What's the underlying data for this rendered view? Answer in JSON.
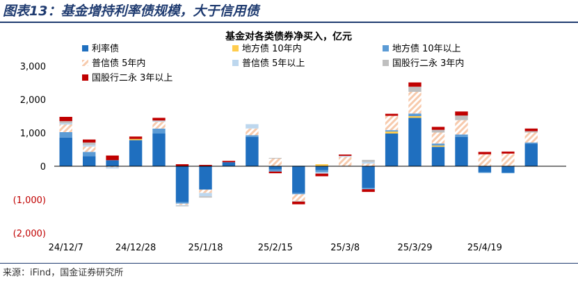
{
  "figure_title": "图表13：基金增持利率债规模，大于信用债",
  "source": "来源：iFind，国金证券研究所",
  "colors": {
    "title": "#1f3b70",
    "negative_tick": "#c00000",
    "rate_bond": "#1f6fbf",
    "local_gov_under10": "#ffcc4d",
    "local_gov_over10": "#5b9bd5",
    "general_credit_under5_stripe": "#f7caac",
    "general_credit_over5": "#bdd7ee",
    "bank_perpetual_under3": "#bfbfbf",
    "bank_perpetual_over3": "#c00000"
  },
  "chart_data": {
    "type": "bar",
    "stacked": true,
    "title": "基金对各类债券净买入，亿元",
    "xlabel": "",
    "ylabel": "",
    "ylim": [
      -2000,
      3000
    ],
    "yticks": [
      3000,
      2000,
      1000,
      0,
      -1000,
      -2000
    ],
    "ytick_labels": [
      "3,000",
      "2,000",
      "1,000",
      "0",
      "(1,000)",
      "(2,000)"
    ],
    "xtick_labels": [
      "24/12/7",
      "24/12/28",
      "25/1/18",
      "25/2/15",
      "25/3/8",
      "25/3/29",
      "25/4/19"
    ],
    "xtick_indices": [
      0,
      3,
      6,
      9,
      12,
      15,
      18
    ],
    "legend_position": "top-left",
    "grid": false,
    "categories": [
      "1",
      "2",
      "3",
      "4",
      "5",
      "6",
      "7",
      "8",
      "9",
      "10",
      "11",
      "12",
      "13",
      "14",
      "15",
      "16",
      "17",
      "18",
      "19",
      "20",
      "21",
      "22"
    ],
    "series": [
      {
        "name": "利率债",
        "color": "#1f6fbf",
        "pattern": "solid",
        "values": [
          860,
          300,
          180,
          780,
          980,
          -1080,
          -700,
          120,
          880,
          -100,
          -800,
          -120,
          0,
          -650,
          980,
          1450,
          580,
          880,
          -180,
          -190,
          680,
          0
        ]
      },
      {
        "name": "地方债 10年内",
        "color": "#ffcc4d",
        "pattern": "solid",
        "values": [
          0,
          0,
          0,
          40,
          0,
          0,
          0,
          0,
          0,
          0,
          0,
          60,
          0,
          0,
          60,
          50,
          40,
          0,
          0,
          0,
          0,
          0
        ]
      },
      {
        "name": "地方债 10年以上",
        "color": "#5b9bd5",
        "pattern": "solid",
        "values": [
          160,
          130,
          0,
          0,
          150,
          -40,
          0,
          0,
          50,
          -60,
          -40,
          -60,
          0,
          -40,
          40,
          80,
          60,
          70,
          -20,
          -20,
          30,
          0
        ]
      },
      {
        "name": "普信债 5年内",
        "color": "#f7caac",
        "pattern": "hatch",
        "values": [
          230,
          160,
          -30,
          0,
          200,
          -40,
          -100,
          0,
          200,
          230,
          -200,
          0,
          280,
          80,
          430,
          650,
          330,
          430,
          360,
          380,
          300,
          0
        ]
      },
      {
        "name": "普信债 5年以上",
        "color": "#bdd7ee",
        "pattern": "solid",
        "values": [
          40,
          50,
          -40,
          0,
          20,
          -20,
          -100,
          0,
          130,
          0,
          20,
          -40,
          30,
          50,
          0,
          0,
          0,
          0,
          0,
          0,
          0,
          0
        ]
      },
      {
        "name": "国股行二永 3年内",
        "color": "#bfbfbf",
        "pattern": "solid",
        "values": [
          60,
          70,
          0,
          0,
          20,
          -20,
          -40,
          0,
          0,
          20,
          -20,
          0,
          0,
          60,
          0,
          150,
          80,
          140,
          0,
          0,
          40,
          0
        ]
      },
      {
        "name": "国股行二永 3年以上",
        "color": "#c00000",
        "pattern": "solid",
        "values": [
          130,
          90,
          140,
          70,
          80,
          60,
          40,
          40,
          0,
          -50,
          -80,
          -80,
          40,
          -80,
          60,
          130,
          90,
          120,
          70,
          60,
          80,
          0
        ]
      }
    ]
  }
}
